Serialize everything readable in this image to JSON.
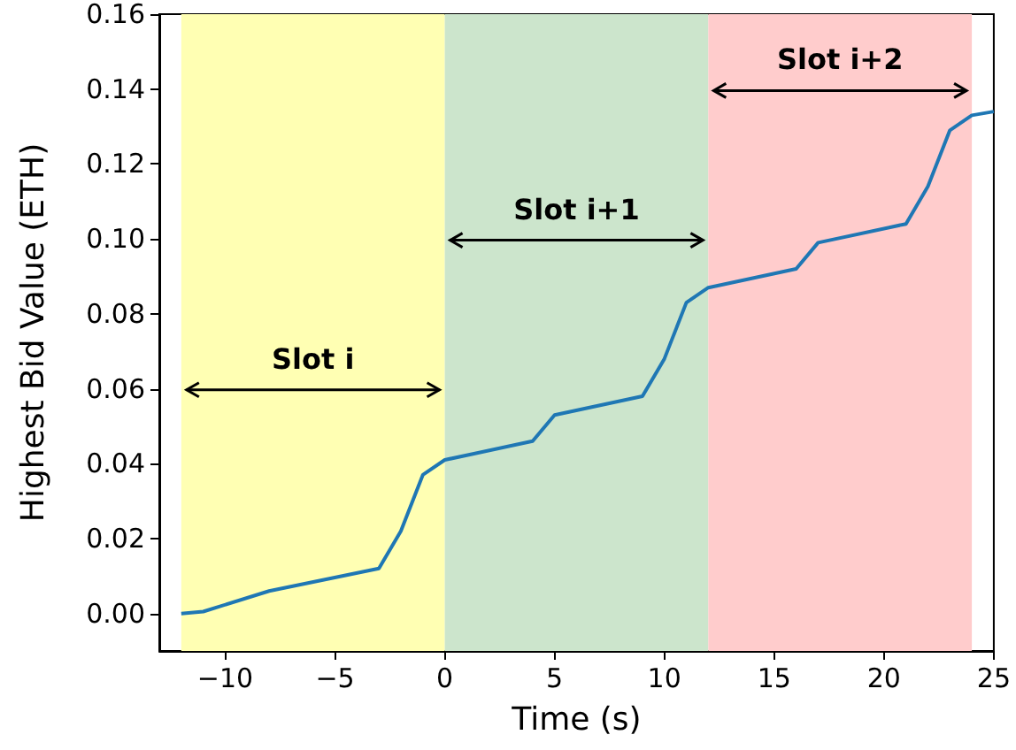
{
  "chart_data": {
    "type": "line",
    "xlabel": "Time (s)",
    "ylabel": "Highest Bid Value (ETH)",
    "x": [
      -12,
      -11,
      -8,
      -3,
      -2,
      -1,
      0,
      4,
      5,
      9,
      10,
      11,
      12,
      16,
      17,
      21,
      22,
      23,
      24,
      25
    ],
    "series": [
      {
        "color": "#1f77b4",
        "values": [
          0.0,
          0.0005,
          0.006,
          0.012,
          0.022,
          0.037,
          0.041,
          0.046,
          0.053,
          0.058,
          0.068,
          0.083,
          0.087,
          0.092,
          0.099,
          0.104,
          0.114,
          0.129,
          0.133,
          0.134
        ]
      }
    ],
    "xlim": [
      -13,
      25
    ],
    "xticks": [
      {
        "value": -10,
        "label": "−10"
      },
      {
        "value": -5,
        "label": "−5"
      },
      0,
      5,
      10,
      15,
      20,
      25
    ],
    "ylim": [
      -0.01,
      0.16
    ],
    "yticks": [
      {
        "value": 0,
        "label": "0.00"
      },
      {
        "value": 0.02,
        "label": "0.02"
      },
      {
        "value": 0.04,
        "label": "0.04"
      },
      {
        "value": 0.06,
        "label": "0.06"
      },
      {
        "value": 0.08,
        "label": "0.08"
      },
      {
        "value": 0.1,
        "label": "0.10"
      },
      {
        "value": 0.12,
        "label": "0.12"
      },
      {
        "value": 0.14,
        "label": "0.14"
      },
      {
        "value": 0.16,
        "label": "0.16"
      }
    ],
    "bands": [
      {
        "axis": "x",
        "from": -12,
        "to": 0,
        "color": "#ffffb3",
        "label": "Slot i"
      },
      {
        "axis": "x",
        "from": 0,
        "to": 12,
        "color": "#cce5cc",
        "label": "Slot i+1"
      },
      {
        "axis": "x",
        "from": 12,
        "to": 24,
        "color": "#ffcccc",
        "label": "Slot i+2"
      }
    ],
    "grid": false,
    "marker": "none",
    "line_style": "solid"
  }
}
